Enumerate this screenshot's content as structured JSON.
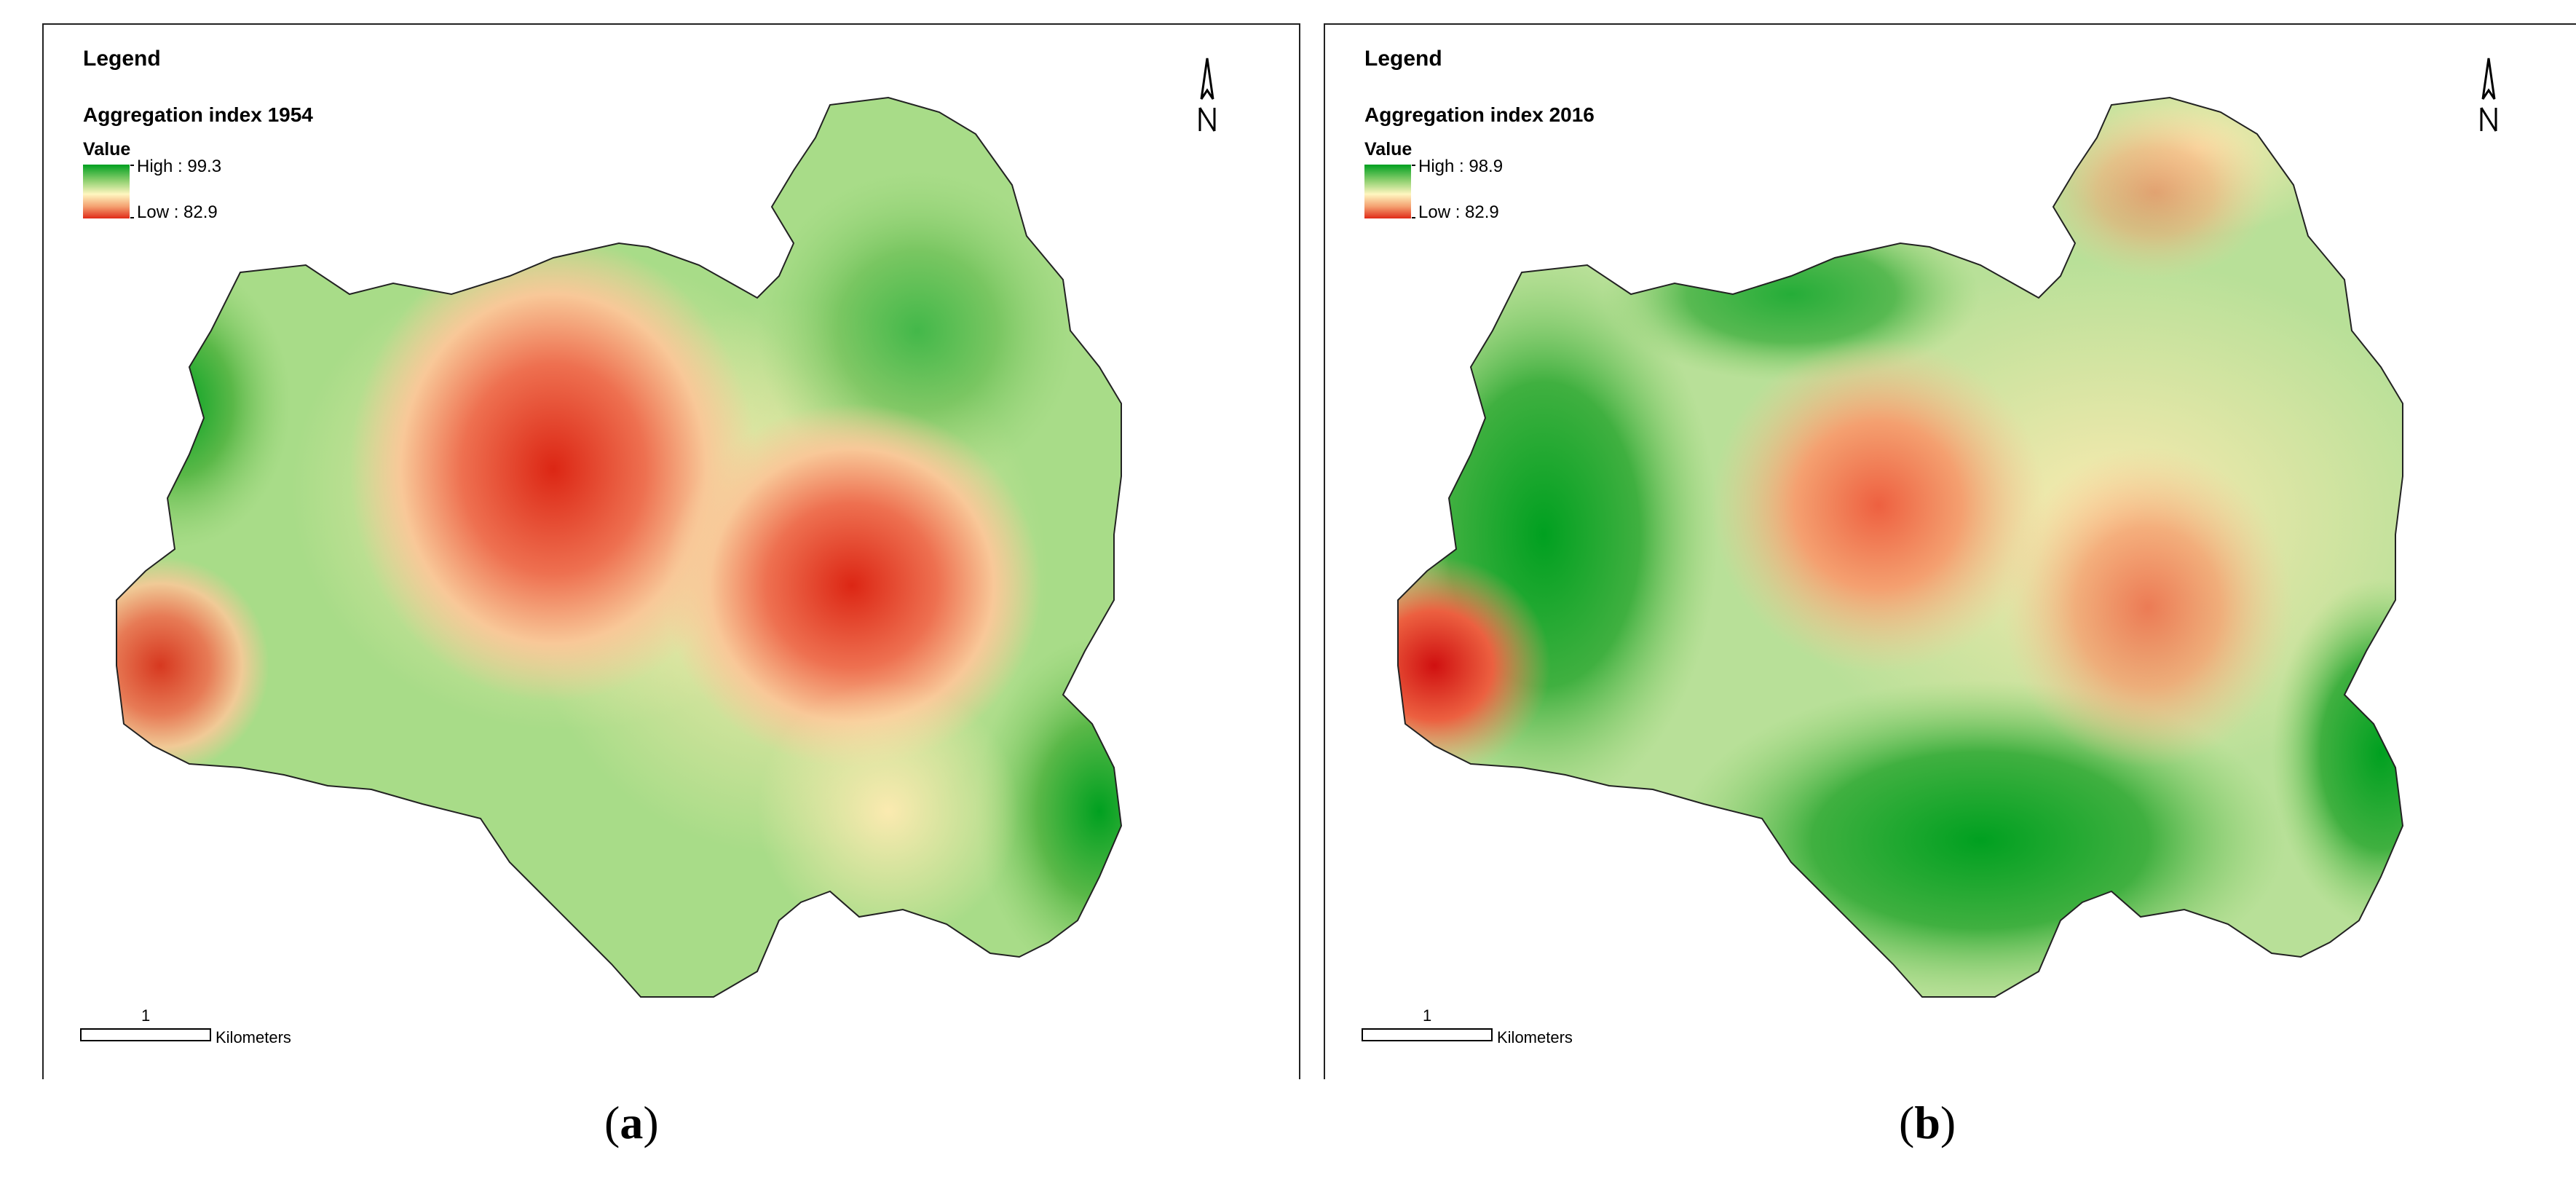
{
  "panels": [
    {
      "legend_title": "Legend",
      "index_title": "Aggregation index 1954",
      "value_label": "Value",
      "high_label": "High : 99.3",
      "low_label": "Low : 82.9",
      "scale_value": "1",
      "scale_unit": "Kilometers",
      "caption_letter": "a",
      "north_icon": "north-arrow-icon"
    },
    {
      "legend_title": "Legend",
      "index_title": "Aggregation index 2016",
      "value_label": "Value",
      "high_label": "High : 98.9",
      "low_label": "Low : 82.9",
      "scale_value": "1",
      "scale_unit": "Kilometers",
      "caption_letter": "b",
      "north_icon": "north-arrow-icon"
    }
  ],
  "colors": {
    "high": "#00a020",
    "mid": "#fff6c0",
    "low": "#e02a18",
    "outline": "#222222"
  }
}
